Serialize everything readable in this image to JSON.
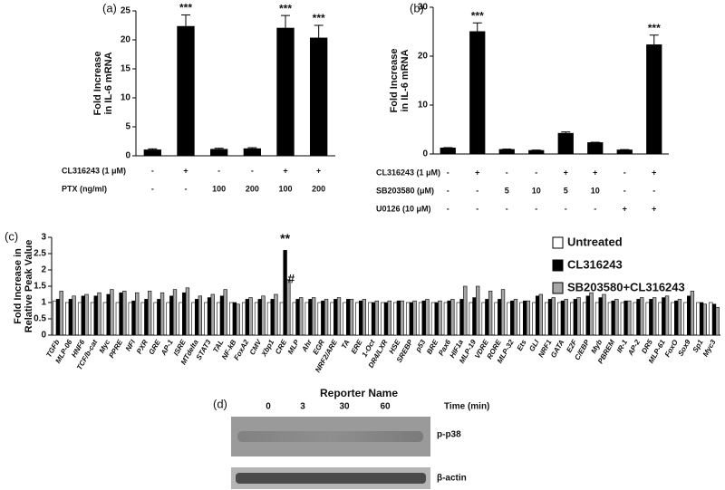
{
  "chart_data": [
    {
      "type": "bar",
      "panel_label": "(a)",
      "ylabel": [
        "Fold Increase",
        "in IL-6 mRNA"
      ],
      "values": [
        1,
        22.3,
        1.1,
        1.2,
        22,
        20.3
      ],
      "errors": [
        0.2,
        2,
        0.2,
        0.2,
        2.2,
        2.2
      ],
      "significance": [
        null,
        "***",
        null,
        null,
        "***",
        "***"
      ],
      "color": "#000000",
      "ylim": [
        0,
        25
      ],
      "yticks": [
        0,
        5,
        10,
        15,
        20,
        25
      ],
      "conditions": [
        {
          "label": "CL316243 (1 μM)",
          "values": [
            "-",
            "+",
            "-",
            "-",
            "+",
            "+"
          ]
        },
        {
          "label": "PTX (ng/ml)",
          "values": [
            "-",
            "-",
            "100",
            "200",
            "100",
            "200"
          ]
        }
      ]
    },
    {
      "type": "bar",
      "panel_label": "(b)",
      "ylabel": [
        "Fold Increase",
        "in IL-6 mRNA"
      ],
      "values": [
        1.2,
        25,
        0.9,
        0.7,
        4.2,
        2.3,
        0.8,
        22.3
      ],
      "errors": [
        0.1,
        1.8,
        0.1,
        0.1,
        0.3,
        0.1,
        0.1,
        2
      ],
      "significance": [
        null,
        "***",
        null,
        null,
        null,
        null,
        null,
        "***"
      ],
      "color": "#000000",
      "ylim": [
        0,
        30
      ],
      "yticks": [
        0,
        10,
        20,
        30
      ],
      "conditions": [
        {
          "label": "CL316243 (1 μM)",
          "values": [
            "-",
            "+",
            "-",
            "-",
            "+",
            "+",
            "-",
            "+"
          ]
        },
        {
          "label": "SB203580 (μM)",
          "values": [
            "-",
            "-",
            "5",
            "10",
            "5",
            "10",
            "-",
            "-"
          ]
        },
        {
          "label": "U0126 (10 μM)",
          "values": [
            "-",
            "-",
            "-",
            "-",
            "-",
            "-",
            "+",
            "+"
          ]
        }
      ]
    },
    {
      "type": "grouped-bar",
      "panel_label": "(c)",
      "ylabel": [
        "Fold Increase in",
        "Relative Peak Value"
      ],
      "xlabel": "Reporter Name",
      "categories": [
        "TGFb",
        "MLP-06",
        "HNF6",
        "TCF/b-cat",
        "Myc",
        "PPRE",
        "NFI",
        "PXR",
        "GRE",
        "AP-1",
        "ISRE",
        "MTdelta",
        "STAT3",
        "TAL",
        "NF-kB",
        "FoxA2",
        "CMV",
        "Xbp1",
        "CRE",
        "MLP",
        "Ahr",
        "EGR",
        "NRF2/ARE",
        "TA",
        "ERE",
        "1-Oct",
        "DR4/LXR",
        "HSE",
        "SREBP",
        "p53",
        "BRE",
        "Pax6",
        "HIF1a",
        "MLP-19",
        "VDRE",
        "RORE",
        "MLP-32",
        "Ets",
        "GLI",
        "NRF1",
        "GATA",
        "E2F",
        "C/EBP",
        "Myb",
        "PBREM",
        "IR-1",
        "AP-2",
        "DR5",
        "MLP-61",
        "FoxO",
        "Sox9",
        "Sp1",
        "Myc3"
      ],
      "series": [
        {
          "name": "Untreated",
          "color": "#ffffff",
          "values": [
            1.05,
            1,
            1,
            1,
            1,
            1,
            1,
            1,
            1,
            1,
            1,
            1,
            1,
            1,
            1,
            1,
            1,
            1,
            1,
            1,
            1,
            1,
            1,
            1,
            1,
            1,
            1,
            1,
            1,
            1,
            1,
            1,
            1,
            1,
            1,
            1,
            1,
            1,
            1,
            1,
            1,
            1,
            1,
            1,
            1,
            1,
            1,
            1,
            1,
            1,
            1,
            1,
            1
          ]
        },
        {
          "name": "CL316243",
          "color": "#000000",
          "values": [
            1.1,
            1.1,
            1.2,
            1.2,
            1.25,
            1.3,
            1.05,
            1.1,
            1.1,
            1.2,
            1.3,
            1.1,
            1.15,
            1.2,
            1.0,
            1.1,
            1.1,
            1.1,
            2.6,
            1.1,
            1.1,
            1.05,
            1.1,
            1.1,
            1.05,
            1.0,
            1.0,
            1.05,
            1.0,
            1.05,
            1.0,
            1.05,
            1.1,
            1.15,
            1.1,
            1.1,
            1.05,
            1.05,
            1.2,
            1.1,
            1.05,
            1.1,
            1.2,
            1.15,
            1.05,
            1.05,
            1.1,
            1.1,
            1.15,
            1.05,
            1.2,
            1.0,
            0.95
          ]
        },
        {
          "name": "SB203580+CL316243",
          "color": "#a6a6a6",
          "values": [
            1.35,
            1.2,
            1.25,
            1.3,
            1.4,
            1.35,
            1.3,
            1.35,
            1.3,
            1.4,
            1.45,
            1.2,
            1.25,
            1.4,
            0.95,
            1.15,
            1.2,
            1.25,
            1.7,
            1.15,
            1.15,
            1.1,
            1.15,
            1.1,
            1.1,
            1.05,
            1.05,
            1.05,
            1.05,
            1.1,
            1.05,
            1.1,
            1.5,
            1.5,
            1.35,
            1.4,
            1.1,
            1.05,
            1.25,
            1.15,
            1.1,
            1.15,
            1.3,
            1.25,
            1.1,
            1.05,
            1.15,
            1.15,
            1.2,
            1.1,
            1.35,
            0.95,
            0.85
          ]
        }
      ],
      "annotations": [
        {
          "text": "**",
          "category": "CRE",
          "series": "CL316243"
        },
        {
          "text": "#",
          "category": "CRE",
          "series": "SB203580+CL316243"
        }
      ],
      "ylim": [
        0,
        3
      ],
      "yticks": [
        0,
        0.5,
        1,
        1.5,
        2,
        2.5,
        3
      ],
      "legend": "right"
    }
  ],
  "blot": {
    "panel_label": "(d)",
    "time_label": "Time (min)",
    "times": [
      "0",
      "3",
      "30",
      "60"
    ],
    "bands": [
      "p-p38",
      "β-actin"
    ]
  }
}
